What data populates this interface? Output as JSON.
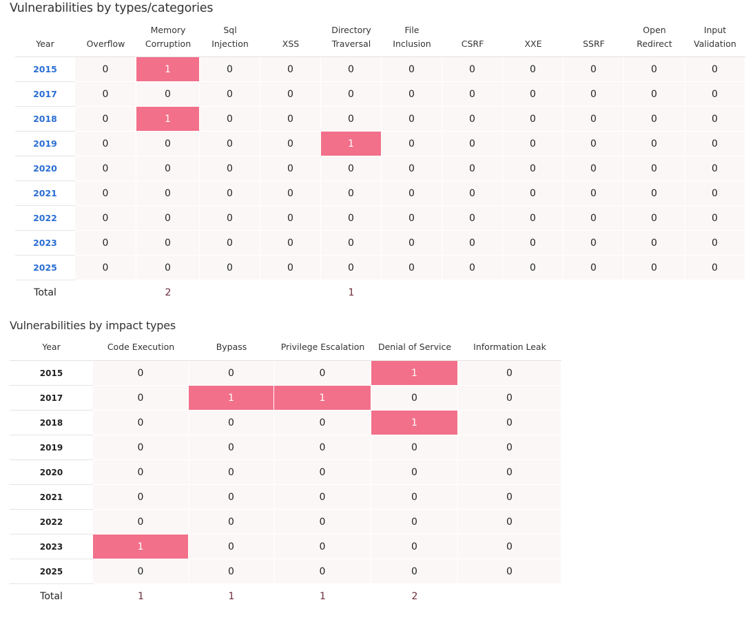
{
  "section1": {
    "title": "Vulnerabilities by types/categories",
    "columns": [
      {
        "l1": "",
        "l2": "Year"
      },
      {
        "l1": "",
        "l2": "Overflow"
      },
      {
        "l1": "Memory",
        "l2": "Corruption"
      },
      {
        "l1": "Sql",
        "l2": "Injection"
      },
      {
        "l1": "",
        "l2": "XSS"
      },
      {
        "l1": "Directory",
        "l2": "Traversal"
      },
      {
        "l1": "File",
        "l2": "Inclusion"
      },
      {
        "l1": "",
        "l2": "CSRF"
      },
      {
        "l1": "",
        "l2": "XXE"
      },
      {
        "l1": "",
        "l2": "SSRF"
      },
      {
        "l1": "Open",
        "l2": "Redirect"
      },
      {
        "l1": "Input",
        "l2": "Validation"
      }
    ],
    "rows": [
      {
        "year": "2015",
        "values": [
          "0",
          "1",
          "0",
          "0",
          "0",
          "0",
          "0",
          "0",
          "0",
          "0",
          "0"
        ]
      },
      {
        "year": "2017",
        "values": [
          "0",
          "0",
          "0",
          "0",
          "0",
          "0",
          "0",
          "0",
          "0",
          "0",
          "0"
        ]
      },
      {
        "year": "2018",
        "values": [
          "0",
          "1",
          "0",
          "0",
          "0",
          "0",
          "0",
          "0",
          "0",
          "0",
          "0"
        ]
      },
      {
        "year": "2019",
        "values": [
          "0",
          "0",
          "0",
          "0",
          "1",
          "0",
          "0",
          "0",
          "0",
          "0",
          "0"
        ]
      },
      {
        "year": "2020",
        "values": [
          "0",
          "0",
          "0",
          "0",
          "0",
          "0",
          "0",
          "0",
          "0",
          "0",
          "0"
        ]
      },
      {
        "year": "2021",
        "values": [
          "0",
          "0",
          "0",
          "0",
          "0",
          "0",
          "0",
          "0",
          "0",
          "0",
          "0"
        ]
      },
      {
        "year": "2022",
        "values": [
          "0",
          "0",
          "0",
          "0",
          "0",
          "0",
          "0",
          "0",
          "0",
          "0",
          "0"
        ]
      },
      {
        "year": "2023",
        "values": [
          "0",
          "0",
          "0",
          "0",
          "0",
          "0",
          "0",
          "0",
          "0",
          "0",
          "0"
        ]
      },
      {
        "year": "2025",
        "values": [
          "0",
          "0",
          "0",
          "0",
          "0",
          "0",
          "0",
          "0",
          "0",
          "0",
          "0"
        ]
      }
    ],
    "total_label": "Total",
    "totals": [
      "",
      "2",
      "",
      "",
      "1",
      "",
      "",
      "",
      "",
      "",
      ""
    ]
  },
  "section2": {
    "title": "Vulnerabilities by impact types",
    "columns": [
      "Year",
      "Code Execution",
      "Bypass",
      "Privilege Escalation",
      "Denial of Service",
      "Information Leak"
    ],
    "rows": [
      {
        "year": "2015",
        "values": [
          "0",
          "0",
          "0",
          "1",
          "0"
        ]
      },
      {
        "year": "2017",
        "values": [
          "0",
          "1",
          "1",
          "0",
          "0"
        ]
      },
      {
        "year": "2018",
        "values": [
          "0",
          "0",
          "0",
          "1",
          "0"
        ]
      },
      {
        "year": "2019",
        "values": [
          "0",
          "0",
          "0",
          "0",
          "0"
        ]
      },
      {
        "year": "2020",
        "values": [
          "0",
          "0",
          "0",
          "0",
          "0"
        ]
      },
      {
        "year": "2021",
        "values": [
          "0",
          "0",
          "0",
          "0",
          "0"
        ]
      },
      {
        "year": "2022",
        "values": [
          "0",
          "0",
          "0",
          "0",
          "0"
        ]
      },
      {
        "year": "2023",
        "values": [
          "1",
          "0",
          "0",
          "0",
          "0"
        ]
      },
      {
        "year": "2025",
        "values": [
          "0",
          "0",
          "0",
          "0",
          "0"
        ]
      }
    ],
    "total_label": "Total",
    "totals": [
      "1",
      "1",
      "1",
      "2",
      ""
    ]
  },
  "colors": {
    "highlight": "#f2708a",
    "cell_background": "#fcf7f7",
    "year_link": "#2a6ed4",
    "total_value": "#6a2b3a"
  }
}
